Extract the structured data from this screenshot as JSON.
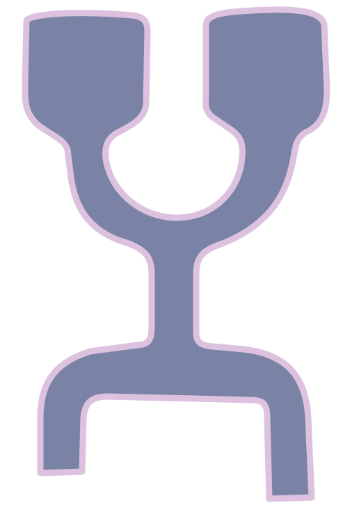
{
  "figure": {
    "colors": {
      "background": "#ffffff",
      "fill": "#7a83a6",
      "outline": "#dcc2df"
    }
  }
}
